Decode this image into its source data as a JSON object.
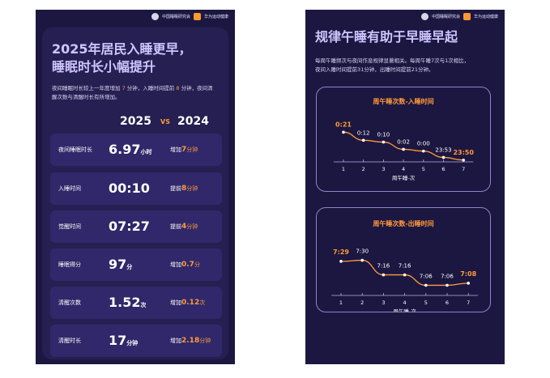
{
  "brand": {
    "org1": "中国睡眠研究会",
    "org2": "华为运动健康"
  },
  "left": {
    "title_line1": "2025年居民入睡更早，",
    "title_line2": "睡眠时长小幅提升",
    "sub_a": "夜间睡眠时长较上一年度增加 ",
    "sub_a_num": "7",
    "sub_b": " 分钟，入睡时间提前 ",
    "sub_b_num": "8",
    "sub_c": " 分钟，夜间清",
    "sub_d": "醒次数与清醒时长有所增加。",
    "year_a": "2025",
    "vs": "VS",
    "year_b": "2024",
    "rows": [
      {
        "label": "夜间睡眠时长",
        "value": "6.97",
        "unit": "小时",
        "delta_prefix": "增加",
        "delta_num": "7",
        "delta_unit": "分钟"
      },
      {
        "label": "入睡时间",
        "value": "00:10",
        "unit": "",
        "delta_prefix": "提前",
        "delta_num": "8",
        "delta_unit": "分钟"
      },
      {
        "label": "觉醒时间",
        "value": "07:27",
        "unit": "",
        "delta_prefix": "提前",
        "delta_num": "4",
        "delta_unit": "分钟"
      },
      {
        "label": "睡眠得分",
        "value": "97",
        "unit": "分",
        "delta_prefix": "增加",
        "delta_num": "0.7",
        "delta_unit": "分"
      },
      {
        "label": "清醒次数",
        "value": "1.52",
        "unit": "次",
        "delta_prefix": "增加",
        "delta_num": "0.12",
        "delta_unit": "次"
      },
      {
        "label": "清醒时长",
        "value": "17",
        "unit": "分钟",
        "delta_prefix": "增加",
        "delta_num": "2.18",
        "delta_unit": "分钟"
      }
    ]
  },
  "right": {
    "title": "规律午睡有助于早睡早起",
    "sub_line1": "每周午睡频次与夜间作息规律显著相关。每周午睡7次与1次相比，",
    "sub_line2": "夜间入睡时间提前31分钟，出睡时间提前21分钟。"
  },
  "chart_data": [
    {
      "type": "line",
      "title": "周午睡次数-入睡时间",
      "xlabel": "周午睡-次",
      "ylabel": "",
      "x": [
        1,
        2,
        3,
        4,
        5,
        6,
        7
      ],
      "point_labels": [
        "0:21",
        "0:12",
        "0:10",
        "0:02",
        "0:00",
        "23:53",
        "23:50"
      ],
      "values_minutes_after_midnight": [
        21,
        12,
        10,
        2,
        0,
        -7,
        -10
      ],
      "highlight_color": "#ff9a3c"
    },
    {
      "type": "line",
      "title": "周午睡次数-出睡时间",
      "xlabel": "周午睡-次",
      "ylabel": "",
      "x": [
        1,
        2,
        3,
        4,
        5,
        6,
        7
      ],
      "point_labels": [
        "7:29",
        "7:30",
        "7:16",
        "7:16",
        "7:06",
        "7:06",
        "7:08"
      ],
      "values_minutes_after_midnight": [
        449,
        450,
        436,
        436,
        426,
        426,
        428
      ],
      "highlight_color": "#ff9a3c"
    }
  ],
  "colors": {
    "bg": "#1c1741",
    "card": "#261f52",
    "row": "#30286a",
    "accent": "#ff9a3c",
    "title": "#cfc6ff"
  }
}
